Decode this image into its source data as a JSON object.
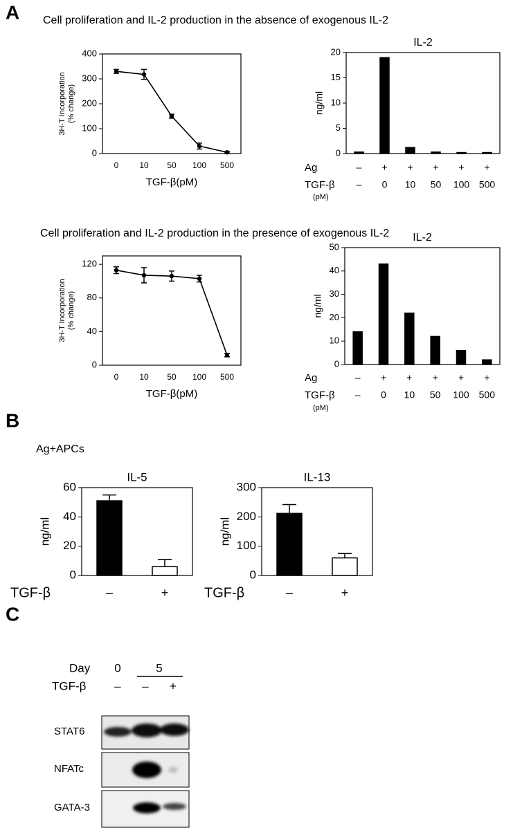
{
  "panel_labels": [
    "A",
    "B",
    "C"
  ],
  "section_titles": [
    "Cell proliferation and IL-2 production in the absence of exogenous IL-2",
    "Cell proliferation and IL-2 production in the presence of exogenous IL-2"
  ],
  "condition_label": "Ag+APCs",
  "chart_data": [
    {
      "type": "line",
      "xlabel": "TGF-β(pM)",
      "ylabel": [
        "3H-T Incorporation",
        "(% change)"
      ],
      "categories": [
        "0",
        "10",
        "50",
        "100",
        "500"
      ],
      "values": [
        330,
        318,
        150,
        30,
        5
      ],
      "errors": [
        8,
        20,
        8,
        12,
        3
      ],
      "ylim": [
        0,
        400
      ],
      "yticks": [
        0,
        100,
        200,
        300,
        400
      ],
      "color": "#000000"
    },
    {
      "type": "bar",
      "title": "IL-2",
      "ylabel": "ng/ml",
      "category_rows": [
        {
          "name": "Ag",
          "labels": [
            "–",
            "+",
            "+",
            "+",
            "+",
            "+"
          ]
        },
        {
          "name": "TGF-β",
          "unit": "(pM)",
          "labels": [
            "–",
            "0",
            "10",
            "50",
            "100",
            "500"
          ]
        }
      ],
      "values": [
        0.3,
        19,
        1.2,
        0.3,
        0.2,
        0.2
      ],
      "ylim": [
        0,
        20
      ],
      "yticks": [
        0,
        5,
        10,
        15,
        20
      ],
      "color": "#000000"
    },
    {
      "type": "line",
      "xlabel": "TGF-β(pM)",
      "ylabel": [
        "3H-T Incorporation",
        "(% change)"
      ],
      "categories": [
        "0",
        "10",
        "50",
        "100",
        "500"
      ],
      "values": [
        113,
        107,
        106,
        103,
        12
      ],
      "errors": [
        4,
        9,
        6,
        4,
        2
      ],
      "ylim": [
        0,
        130
      ],
      "yticks": [
        0,
        40,
        80,
        120
      ],
      "color": "#000000"
    },
    {
      "type": "bar",
      "title": "IL-2",
      "ylabel": "ng/ml",
      "category_rows": [
        {
          "name": "Ag",
          "labels": [
            "–",
            "+",
            "+",
            "+",
            "+",
            "+"
          ]
        },
        {
          "name": "TGF-β",
          "unit": "(pM)",
          "labels": [
            "–",
            "0",
            "10",
            "50",
            "100",
            "500"
          ]
        }
      ],
      "values": [
        14,
        43,
        22,
        12,
        6,
        2
      ],
      "ylim": [
        0,
        50
      ],
      "yticks": [
        0,
        10,
        20,
        30,
        40,
        50
      ],
      "color": "#000000"
    },
    {
      "type": "bar",
      "title": "IL-5",
      "ylabel": "ng/ml",
      "category_rows": [
        {
          "name": "TGF-β",
          "labels": [
            "–",
            "+"
          ]
        }
      ],
      "values": [
        51,
        6
      ],
      "errors": [
        4,
        5
      ],
      "colors": [
        "#000000",
        "#ffffff"
      ],
      "ylim": [
        0,
        60
      ],
      "yticks": [
        0,
        20,
        40,
        60
      ]
    },
    {
      "type": "bar",
      "title": "IL-13",
      "ylabel": "ng/ml",
      "category_rows": [
        {
          "name": "TGF-β",
          "labels": [
            "–",
            "+"
          ]
        }
      ],
      "values": [
        212,
        60
      ],
      "errors": [
        30,
        15
      ],
      "colors": [
        "#000000",
        "#ffffff"
      ],
      "ylim": [
        0,
        300
      ],
      "yticks": [
        0,
        100,
        200,
        300
      ]
    }
  ],
  "blot": {
    "header_rows": [
      {
        "label": "Day",
        "labels": [
          "0",
          "5"
        ]
      },
      {
        "label": "TGF-β",
        "labels": [
          "–",
          "–",
          "+"
        ]
      }
    ],
    "rows": [
      "STAT6",
      "NFATc",
      "GATA-3"
    ]
  }
}
